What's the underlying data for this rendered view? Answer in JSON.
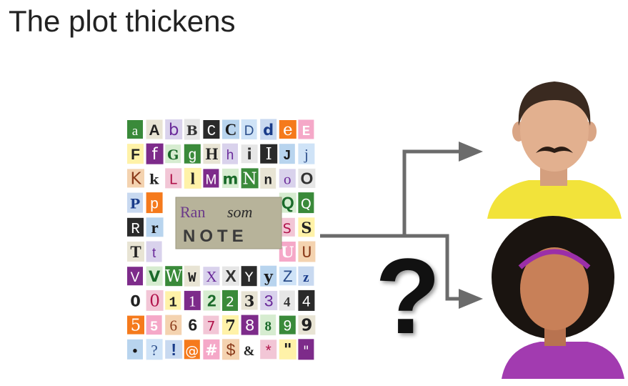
{
  "slide": {
    "title": "The plot thickens"
  },
  "ransom_note": {
    "label": [
      "Ran",
      "som",
      "NOTE"
    ],
    "rows": [
      [
        "a",
        "A",
        "b",
        "B",
        "C",
        "C",
        "D",
        "d",
        "e",
        "E"
      ],
      [
        "F",
        "f",
        "G",
        "g",
        "H",
        "h",
        "i",
        "I",
        "J",
        "j"
      ],
      [
        "K",
        "k",
        "L",
        "l",
        "M",
        "m",
        "N",
        "n",
        "o",
        "O"
      ],
      [
        "P",
        "p",
        "Q",
        "Q"
      ],
      [
        "R",
        "r",
        "S",
        "S"
      ],
      [
        "T",
        "t",
        "U",
        "U"
      ],
      [
        "V",
        "V",
        "W",
        "W",
        "X",
        "X",
        "Y",
        "y",
        "Z",
        "z"
      ],
      [
        "0",
        "0",
        "1",
        "1",
        "2",
        "2",
        "3",
        "3",
        "4",
        "4"
      ],
      [
        "5",
        "5",
        "6",
        "6",
        "7",
        "7",
        "8",
        "8",
        "9",
        "9"
      ],
      [
        "•",
        "?",
        "!",
        "@",
        "#",
        "$",
        "&",
        "*",
        "\"",
        "\""
      ]
    ]
  },
  "question_mark": "?",
  "colors": {
    "arrow": "#6b6b6b",
    "man_shirt": "#f2e33a",
    "woman_shirt": "#a23bb0",
    "man_skin": "#e2b08f",
    "woman_skin": "#c88058",
    "man_hair": "#3a2a20",
    "woman_hair": "#1a1410",
    "headband": "#9b2fa8",
    "note_bg": "#b7b39a"
  }
}
